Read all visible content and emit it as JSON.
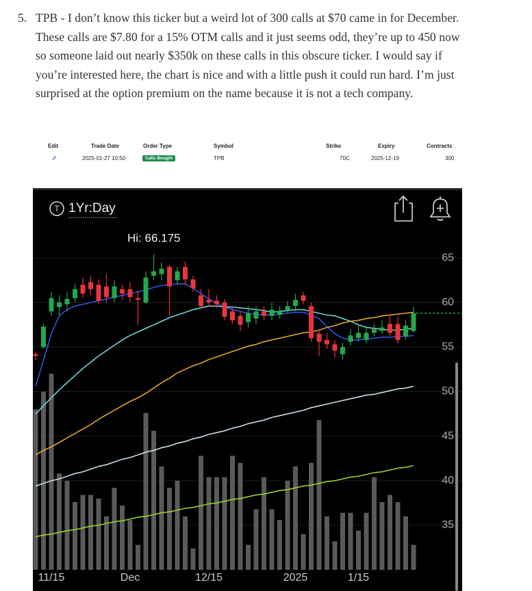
{
  "article": {
    "number": "5.",
    "text": "TPB - I don’t know this ticker but a weird lot of 300 calls at $70 came in for December. These calls are $7.80 for a 15% OTM calls and it just seems odd, they’re up to 450 now so someone laid out nearly $350k on these calls in this obscure ticker. I would say if you’re interested here, the chart is nice and with a little push it could run hard. I’m just surprised at the option premium on the name because it is not a tech company."
  },
  "trade_table": {
    "headers": [
      "Edit",
      "Trade Date",
      "Order Type",
      "Symbol",
      "Strike",
      "Expiry",
      "Contracts"
    ],
    "row": {
      "trade_date": "2025-01-27 10:50",
      "order_type": "Calls Bought",
      "symbol": "TPB",
      "strike": "70C",
      "expiry": "2025-12-19",
      "contracts": "300"
    }
  },
  "chart_data": {
    "type": "candlestick",
    "timeframe": "1Yr:Day",
    "annotation": "Hi: 66.175",
    "categories": [
      null,
      null,
      "11/15",
      null,
      null,
      null,
      null,
      null,
      null,
      null,
      null,
      null,
      "Dec",
      null,
      null,
      null,
      null,
      null,
      null,
      null,
      null,
      null,
      "12/15",
      null,
      null,
      null,
      null,
      null,
      null,
      null,
      null,
      null,
      null,
      "2025",
      null,
      null,
      null,
      null,
      null,
      null,
      null,
      "1/15",
      null,
      null,
      null,
      null,
      null,
      null,
      null
    ],
    "open": [
      54.2,
      55.0,
      59.0,
      59.5,
      59.8,
      60.5,
      62.0,
      62.3,
      62.0,
      61.8,
      60.5,
      61.5,
      61.5,
      60.5,
      60.0,
      63.0,
      63.2,
      64.0,
      62.5,
      64.0,
      62.6,
      60.8,
      60.3,
      60.2,
      60.0,
      59.0,
      58.5,
      57.8,
      58.2,
      59.0,
      58.5,
      58.6,
      59.2,
      59.6,
      60.8,
      59.6,
      56.5,
      55.8,
      55.3,
      54.2,
      55.6,
      56.0,
      55.8,
      56.6,
      56.8,
      57.6,
      57.6,
      56.2,
      56.8
    ],
    "high": [
      54.5,
      57.6,
      61.2,
      60.8,
      61.2,
      62.1,
      62.8,
      63.0,
      62.6,
      63.2,
      62.5,
      62.0,
      62.3,
      61.3,
      63.5,
      65.4,
      64.5,
      64.2,
      64.0,
      64.6,
      63.0,
      61.5,
      61.5,
      60.8,
      60.4,
      59.6,
      59.0,
      59.6,
      59.6,
      59.6,
      60.0,
      59.6,
      60.2,
      61.0,
      61.2,
      60.0,
      57.0,
      56.6,
      55.8,
      55.5,
      57.0,
      57.4,
      57.4,
      57.6,
      58.0,
      58.6,
      58.4,
      58.0,
      59.5
    ],
    "low": [
      53.5,
      54.8,
      58.5,
      58.6,
      59.0,
      60.0,
      60.5,
      60.8,
      59.8,
      60.0,
      60.0,
      60.3,
      60.0,
      57.5,
      59.8,
      62.5,
      62.5,
      58.5,
      62.0,
      62.0,
      61.2,
      59.4,
      59.5,
      59.4,
      58.0,
      57.6,
      56.8,
      57.2,
      57.6,
      58.0,
      58.0,
      58.2,
      58.8,
      59.0,
      59.8,
      55.6,
      54.0,
      54.8,
      53.8,
      53.6,
      55.2,
      55.6,
      55.4,
      56.2,
      56.5,
      56.2,
      55.4,
      55.8,
      56.6
    ],
    "close": [
      54.0,
      57.3,
      60.5,
      60.0,
      60.4,
      61.5,
      61.0,
      61.5,
      60.2,
      60.6,
      61.8,
      61.0,
      60.6,
      60.3,
      62.8,
      63.5,
      63.8,
      61.8,
      63.5,
      62.6,
      61.6,
      59.6,
      60.0,
      59.8,
      58.4,
      58.0,
      57.5,
      58.8,
      59.0,
      58.5,
      59.2,
      59.0,
      59.6,
      60.3,
      60.2,
      56.0,
      55.6,
      55.3,
      54.6,
      55.0,
      56.3,
      56.6,
      56.6,
      57.0,
      57.2,
      56.6,
      55.8,
      57.4,
      58.8
    ],
    "volume": [
      45,
      50,
      55,
      27,
      25,
      19,
      21,
      21,
      20,
      15,
      23,
      18,
      14,
      7,
      44,
      39,
      29,
      23,
      25,
      15,
      6,
      32,
      26,
      26,
      26,
      32,
      30,
      7,
      17,
      26,
      17,
      14,
      25,
      29,
      10,
      30,
      42,
      15,
      8,
      16,
      16,
      11,
      16,
      26,
      19,
      21,
      19,
      15,
      7
    ],
    "volume_axis": "y2",
    "lines": [
      {
        "color": "#2f55e6",
        "values": [
          50.6,
          53.5,
          56.5,
          58.5,
          59.2,
          59.6,
          59.8,
          60.0,
          60.2,
          60.4,
          60.6,
          60.8,
          61.0,
          61.2,
          61.4,
          61.7,
          61.9,
          62.0,
          62.1,
          62.1,
          61.6,
          61.0,
          60.4,
          59.9,
          59.5,
          59.2,
          59.0,
          58.8,
          58.7,
          58.6,
          58.6,
          58.7,
          58.8,
          58.9,
          58.9,
          58.6,
          58.2,
          57.3,
          56.5,
          56.0,
          55.8,
          55.8,
          55.9,
          56.0,
          56.1,
          56.1,
          56.2,
          56.2,
          56.3
        ]
      },
      {
        "color": "#6fd6dc",
        "values": [
          47.5,
          48.4,
          49.3,
          50.2,
          51.0,
          51.8,
          52.6,
          53.3,
          54.0,
          54.6,
          55.2,
          55.8,
          56.3,
          56.7,
          57.1,
          57.5,
          57.9,
          58.3,
          58.6,
          58.9,
          59.2,
          59.4,
          59.6,
          59.6,
          59.5,
          59.5,
          59.4,
          59.3,
          59.2,
          59.1,
          58.9,
          59.0,
          59.1,
          59.2,
          59.2,
          59.0,
          58.8,
          58.6,
          58.5,
          58.2,
          57.9,
          57.5,
          57.2,
          57.1,
          57.0,
          56.9,
          56.9,
          57.0,
          57.1
        ]
      },
      {
        "color": "#e0a82e",
        "values": [
          42.9,
          43.4,
          43.8,
          44.3,
          44.8,
          45.3,
          45.8,
          46.3,
          46.9,
          47.4,
          47.9,
          48.4,
          48.9,
          49.3,
          49.8,
          50.4,
          51.0,
          51.5,
          52.1,
          52.5,
          52.9,
          53.2,
          53.6,
          53.9,
          54.2,
          54.5,
          54.8,
          55.1,
          55.3,
          55.6,
          55.8,
          56.0,
          56.2,
          56.4,
          56.6,
          56.7,
          56.9,
          57.2,
          57.4,
          57.7,
          57.9,
          58.0,
          58.2,
          58.3,
          58.5,
          58.6,
          58.7,
          58.8,
          58.9
        ]
      },
      {
        "color": "#c8dde8",
        "values": [
          39.4,
          39.7,
          40.0,
          40.2,
          40.5,
          40.8,
          41.0,
          41.3,
          41.6,
          41.8,
          42.1,
          42.4,
          42.6,
          42.9,
          43.2,
          43.4,
          43.7,
          43.9,
          44.2,
          44.4,
          44.7,
          44.9,
          45.2,
          45.4,
          45.6,
          45.9,
          46.1,
          46.4,
          46.6,
          46.8,
          47.1,
          47.3,
          47.5,
          47.7,
          47.9,
          48.2,
          48.4,
          48.6,
          48.8,
          49.0,
          49.2,
          49.4,
          49.6,
          49.7,
          49.9,
          50.1,
          50.3,
          50.4,
          50.6
        ]
      },
      {
        "color": "#9ed02e",
        "values": [
          33.7,
          33.9,
          34.0,
          34.2,
          34.4,
          34.5,
          34.7,
          34.9,
          35.0,
          35.2,
          35.4,
          35.5,
          35.7,
          35.9,
          36.0,
          36.2,
          36.4,
          36.5,
          36.7,
          36.9,
          37.0,
          37.2,
          37.4,
          37.5,
          37.7,
          37.9,
          38.0,
          38.2,
          38.4,
          38.5,
          38.7,
          38.9,
          39.0,
          39.2,
          39.4,
          39.5,
          39.7,
          39.9,
          40.0,
          40.2,
          40.4,
          40.5,
          40.7,
          40.9,
          41.0,
          41.2,
          41.4,
          41.5,
          41.7
        ]
      }
    ],
    "up_color": "#22a94c",
    "down_color": "#e8353b",
    "volume_color": "#5a5a5a",
    "last_line_color": "#22a94c",
    "ylim": [
      30,
      70
    ],
    "yticks": [
      35,
      40,
      45,
      50,
      55,
      60,
      65
    ],
    "y2lim": [
      0,
      100
    ],
    "grid": true
  }
}
